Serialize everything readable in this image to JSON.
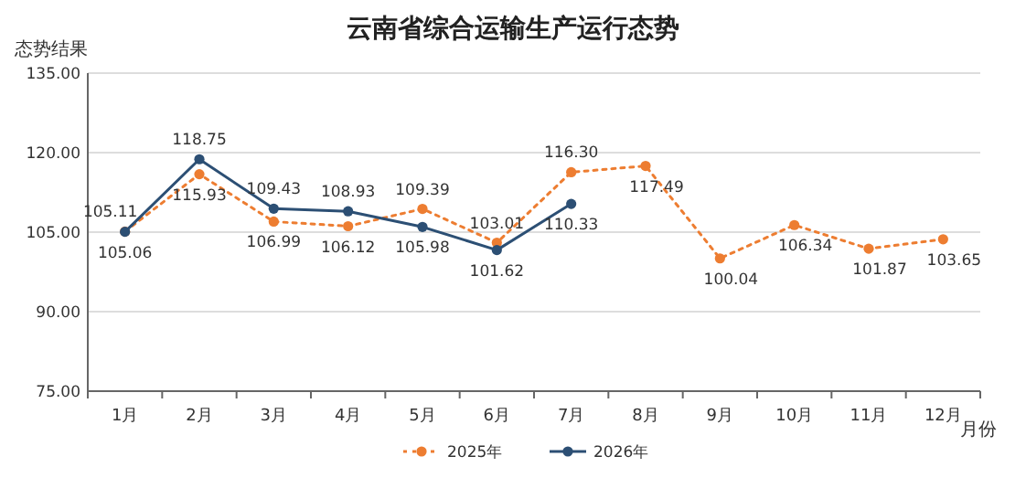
{
  "chart_data": {
    "type": "line",
    "title": "云南省综合运输生产运行态势",
    "ylabel": "态势结果",
    "xlabel": "月份",
    "categories": [
      "1月",
      "2月",
      "3月",
      "4月",
      "5月",
      "6月",
      "7月",
      "8月",
      "9月",
      "10月",
      "11月",
      "12月"
    ],
    "series": [
      {
        "name": "2025年",
        "color": "#ed7d31",
        "line_style": "dotted",
        "values": [
          105.11,
          115.93,
          106.99,
          106.12,
          109.39,
          103.01,
          116.3,
          117.49,
          100.04,
          106.34,
          101.87,
          103.65
        ],
        "value_labels": [
          "105.11",
          "115.93",
          "106.99",
          "106.12",
          "109.39",
          "103.01",
          "116.30",
          "117.49",
          "100.04",
          "106.34",
          "101.87",
          "103.65"
        ]
      },
      {
        "name": "2026年",
        "color": "#2c4f74",
        "line_style": "solid",
        "values": [
          105.06,
          118.75,
          109.43,
          108.93,
          105.98,
          101.62,
          110.33,
          null,
          null,
          null,
          null,
          null
        ],
        "value_labels": [
          "105.06",
          "118.75",
          "109.43",
          "108.93",
          "105.98",
          "101.62",
          "110.33",
          null,
          null,
          null,
          null,
          null
        ]
      }
    ],
    "ylim": [
      75,
      135
    ],
    "yticks": [
      {
        "value": 75,
        "label": "75.00"
      },
      {
        "value": 90,
        "label": "90.00"
      },
      {
        "value": 105,
        "label": "105.00"
      },
      {
        "value": 120,
        "label": "120.00"
      },
      {
        "value": 135,
        "label": "135.00"
      }
    ],
    "grid": "y",
    "legend": "bottom",
    "marker": "circle"
  }
}
